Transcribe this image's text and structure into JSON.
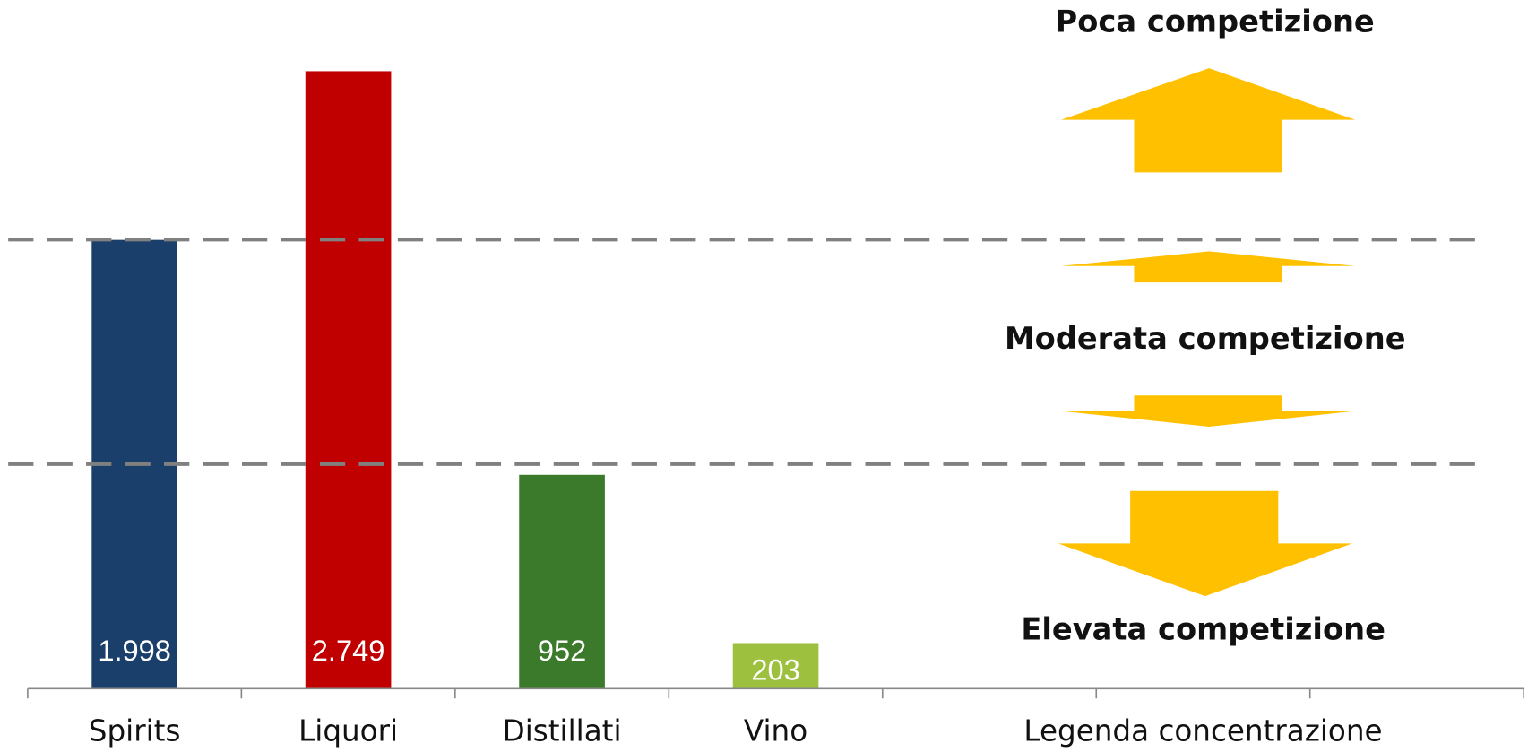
{
  "chart_data": {
    "type": "bar",
    "categories": [
      "Spirits",
      "Liquori",
      "Distillati",
      "Vino",
      "Legenda concentrazione"
    ],
    "values": [
      1998,
      2749,
      952,
      203,
      null
    ],
    "value_labels": [
      "1.998",
      "2.749",
      "952",
      "203",
      null
    ],
    "colors": [
      "#1a3f6b",
      "#c00000",
      "#3b7a2a",
      "#9dc03f",
      null
    ],
    "ylim": [
      0,
      3066
    ],
    "reference_lines": [
      1000,
      2000
    ],
    "annotations": [
      "Poca competizione",
      "Moderata competizione",
      "Elevata competizione"
    ]
  }
}
